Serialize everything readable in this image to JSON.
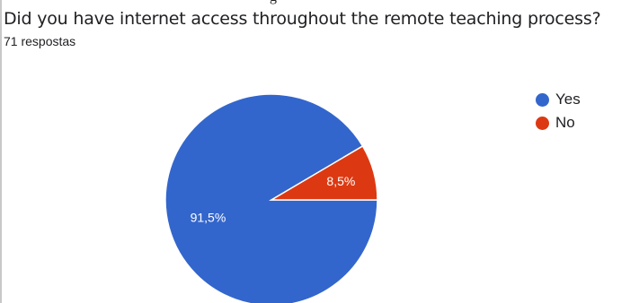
{
  "header": {
    "top_fragment": "g",
    "question": "Did you have internet access throughout the remote teaching process?",
    "response_count": "71 respostas"
  },
  "chart_data": {
    "type": "pie",
    "title": "Did you have internet access throughout the remote teaching process?",
    "slices": [
      {
        "label": "Yes",
        "value": 91.5,
        "display": "91,5%",
        "color": "#3366cc"
      },
      {
        "label": "No",
        "value": 8.5,
        "display": "8,5%",
        "color": "#dc3912"
      }
    ],
    "start_angle_deg": 90,
    "direction": "clockwise",
    "legend_placement": "top-right"
  }
}
